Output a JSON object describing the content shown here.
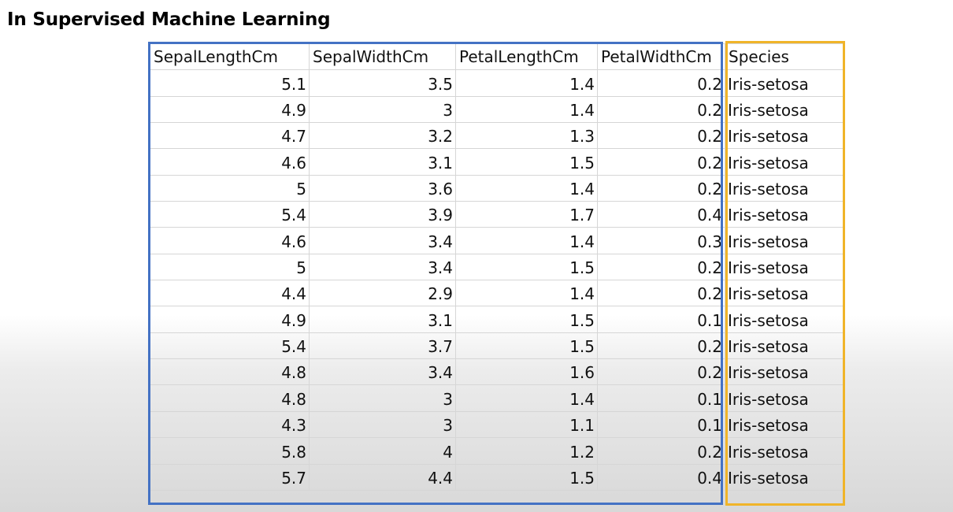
{
  "title": "In Supervised Machine Learning",
  "colors": {
    "feature_box": "#4472c4",
    "label_box": "#f0b429"
  },
  "table": {
    "headers": [
      "SepalLengthCm",
      "SepalWidthCm",
      "PetalLengthCm",
      "PetalWidthCm",
      "Species"
    ],
    "rows": [
      [
        "5.1",
        "3.5",
        "1.4",
        "0.2",
        "Iris-setosa"
      ],
      [
        "4.9",
        "3",
        "1.4",
        "0.2",
        "Iris-setosa"
      ],
      [
        "4.7",
        "3.2",
        "1.3",
        "0.2",
        "Iris-setosa"
      ],
      [
        "4.6",
        "3.1",
        "1.5",
        "0.2",
        "Iris-setosa"
      ],
      [
        "5",
        "3.6",
        "1.4",
        "0.2",
        "Iris-setosa"
      ],
      [
        "5.4",
        "3.9",
        "1.7",
        "0.4",
        "Iris-setosa"
      ],
      [
        "4.6",
        "3.4",
        "1.4",
        "0.3",
        "Iris-setosa"
      ],
      [
        "5",
        "3.4",
        "1.5",
        "0.2",
        "Iris-setosa"
      ],
      [
        "4.4",
        "2.9",
        "1.4",
        "0.2",
        "Iris-setosa"
      ],
      [
        "4.9",
        "3.1",
        "1.5",
        "0.1",
        "Iris-setosa"
      ],
      [
        "5.4",
        "3.7",
        "1.5",
        "0.2",
        "Iris-setosa"
      ],
      [
        "4.8",
        "3.4",
        "1.6",
        "0.2",
        "Iris-setosa"
      ],
      [
        "4.8",
        "3",
        "1.4",
        "0.1",
        "Iris-setosa"
      ],
      [
        "4.3",
        "3",
        "1.1",
        "0.1",
        "Iris-setosa"
      ],
      [
        "5.8",
        "4",
        "1.2",
        "0.2",
        "Iris-setosa"
      ],
      [
        "5.7",
        "4.4",
        "1.5",
        "0.4",
        "Iris-setosa"
      ]
    ]
  }
}
